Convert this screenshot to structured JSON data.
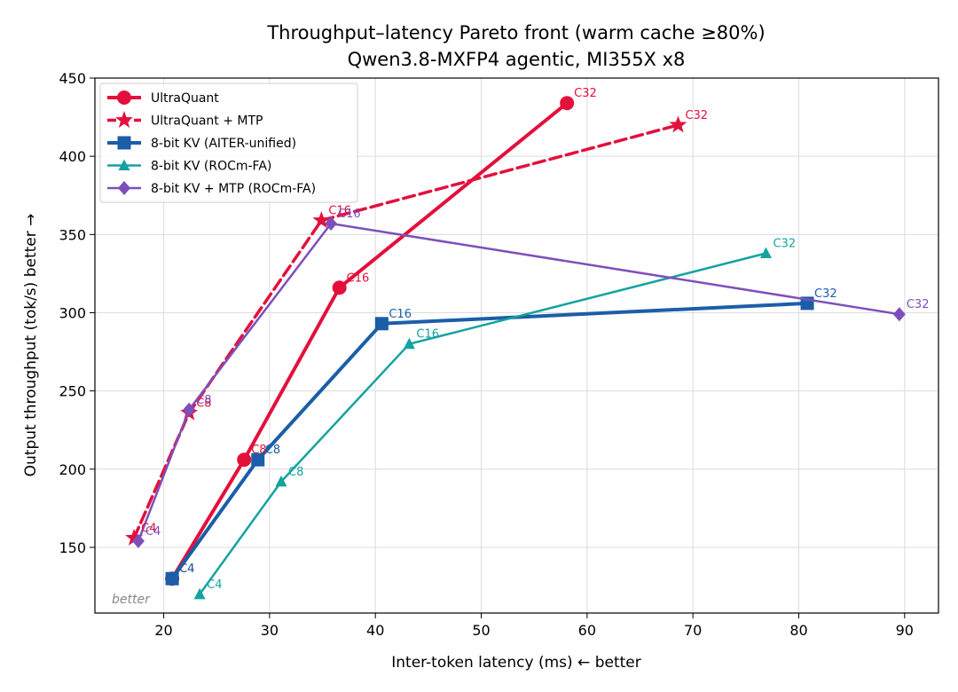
{
  "chart_data": {
    "type": "line",
    "title": "Throughput–latency Pareto front (warm cache ≥80%)",
    "subtitle": "Qwen3.8-MXFP4 agentic, MI355X x8",
    "xlabel": "Inter-token latency (ms)  ← better",
    "ylabel": "Output throughput (tok/s)  better →",
    "xlim": [
      13.5,
      93.2
    ],
    "ylim": [
      108,
      450
    ],
    "xticks": [
      20,
      30,
      40,
      50,
      60,
      70,
      80,
      90
    ],
    "yticks": [
      150,
      200,
      250,
      300,
      350,
      400,
      450
    ],
    "grid": true,
    "legend_position": "top-left",
    "annotation": "better",
    "series": [
      {
        "name": "UltraQuant",
        "color": "#e3103c",
        "marker": "circle",
        "dash": "solid",
        "width": 4,
        "points": [
          {
            "x": 20.8,
            "y": 130,
            "label": "C4"
          },
          {
            "x": 27.6,
            "y": 206,
            "label": "C8"
          },
          {
            "x": 36.6,
            "y": 316,
            "label": "C16"
          },
          {
            "x": 58.1,
            "y": 434,
            "label": "C32"
          }
        ]
      },
      {
        "name": "UltraQuant + MTP",
        "color": "#e3103c",
        "marker": "star",
        "dash": "dashed",
        "width": 3.5,
        "points": [
          {
            "x": 17.2,
            "y": 156,
            "label": "C4"
          },
          {
            "x": 22.4,
            "y": 236,
            "label": "C8"
          },
          {
            "x": 34.9,
            "y": 359,
            "label": "C16"
          },
          {
            "x": 68.6,
            "y": 420,
            "label": "C32"
          }
        ]
      },
      {
        "name": "8-bit KV (AITER-unified)",
        "color": "#1a5ea8",
        "marker": "square",
        "dash": "solid",
        "width": 4,
        "points": [
          {
            "x": 20.8,
            "y": 130,
            "label": "C4"
          },
          {
            "x": 28.9,
            "y": 206,
            "label": "C8"
          },
          {
            "x": 40.6,
            "y": 293,
            "label": "C16"
          },
          {
            "x": 80.8,
            "y": 306,
            "label": "C32"
          }
        ]
      },
      {
        "name": "8-bit KV (ROCm-FA)",
        "color": "#14a3a0",
        "marker": "triangle",
        "dash": "solid",
        "width": 2.5,
        "points": [
          {
            "x": 23.4,
            "y": 120,
            "label": "C4"
          },
          {
            "x": 31.1,
            "y": 192,
            "label": "C8"
          },
          {
            "x": 43.2,
            "y": 280,
            "label": "C16"
          },
          {
            "x": 76.9,
            "y": 338,
            "label": "C32"
          }
        ]
      },
      {
        "name": "8-bit KV + MTP (ROCm-FA)",
        "color": "#7e4fbb",
        "marker": "diamond",
        "dash": "solid",
        "width": 2.5,
        "points": [
          {
            "x": 17.6,
            "y": 154,
            "label": "C4"
          },
          {
            "x": 22.4,
            "y": 238,
            "label": "C8"
          },
          {
            "x": 35.8,
            "y": 357,
            "label": "C16"
          },
          {
            "x": 89.5,
            "y": 299,
            "label": "C32"
          }
        ]
      }
    ]
  }
}
